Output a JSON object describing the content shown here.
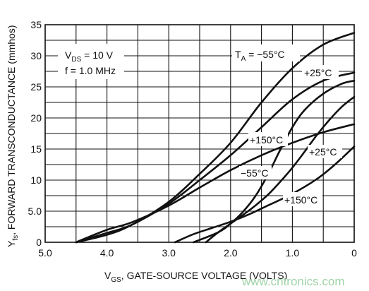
{
  "chart_data": {
    "type": "line",
    "xlabel_parts": [
      "V",
      "GS",
      ", GATE-SOURCE VOLTAGE (VOLTS)"
    ],
    "ylabel_parts": [
      "Y",
      "fs",
      ", FORWARD TRANSCONDUCTANCE (mmhos)"
    ],
    "xlim": [
      5.0,
      0
    ],
    "ylim": [
      0,
      35
    ],
    "x_ticks": [
      "5.0",
      "4.0",
      "3.0",
      "2.0",
      "1.0",
      "0"
    ],
    "y_ticks": [
      "0",
      "5.0",
      "10",
      "15",
      "20",
      "25",
      "30",
      "35"
    ],
    "grid": true,
    "conditions": {
      "vds_parts": [
        "V",
        "DS",
        " = 10 V"
      ],
      "freq": "f = 1.0 MHz"
    },
    "curve_labels": [
      {
        "label": "T",
        "sub": "A",
        "rest": " = −55°C"
      },
      {
        "label": "+25°C"
      },
      {
        "label": "+150°C"
      },
      {
        "label": "−55°C"
      },
      {
        "label": "+25°C"
      },
      {
        "label": "+150°C"
      }
    ],
    "series": [
      {
        "group": "a",
        "temperature": "−55°C",
        "x": [
          4.5,
          4.0,
          3.6,
          3.0,
          2.5,
          2.0,
          1.5,
          1.0,
          0.5,
          0
        ],
        "y": [
          0,
          1.2,
          2.8,
          6.5,
          11.0,
          16.0,
          22.5,
          28.0,
          31.8,
          33.7
        ]
      },
      {
        "group": "a",
        "temperature": "+25°C",
        "x": [
          4.5,
          4.0,
          3.6,
          3.0,
          2.5,
          2.0,
          1.5,
          1.0,
          0.5,
          0
        ],
        "y": [
          0,
          1.5,
          2.8,
          6.2,
          10.0,
          14.0,
          18.5,
          23.0,
          26.0,
          27.3
        ]
      },
      {
        "group": "a",
        "temperature": "+150°C",
        "x": [
          4.5,
          4.0,
          3.6,
          3.0,
          2.5,
          2.0,
          1.5,
          1.0,
          0.5,
          0
        ],
        "y": [
          0,
          2.0,
          3.2,
          5.9,
          8.8,
          11.6,
          14.0,
          16.0,
          17.7,
          19.0
        ]
      },
      {
        "group": "b",
        "temperature": "−55°C",
        "x": [
          2.6,
          2.2,
          2.0,
          1.8,
          1.6,
          1.4,
          1.2,
          1.0,
          0.8,
          0.5,
          0.2,
          0
        ],
        "y": [
          0,
          1.6,
          3.0,
          4.9,
          7.4,
          10.8,
          14.8,
          18.5,
          21.3,
          23.9,
          25.5,
          26.0
        ]
      },
      {
        "group": "b",
        "temperature": "+25°C",
        "x": [
          2.4,
          2.2,
          2.0,
          1.8,
          1.6,
          1.4,
          1.2,
          1.0,
          0.8,
          0.6,
          0.4,
          0.2,
          0
        ],
        "y": [
          0,
          1.6,
          3.0,
          4.4,
          5.9,
          7.6,
          9.7,
          12.0,
          14.6,
          17.3,
          19.7,
          21.8,
          23.4
        ]
      },
      {
        "group": "b",
        "temperature": "+150°C",
        "x": [
          2.9,
          2.6,
          2.3,
          2.0,
          1.7,
          1.4,
          1.0,
          0.6,
          0.3,
          0
        ],
        "y": [
          0,
          1.3,
          2.3,
          3.3,
          4.5,
          5.9,
          7.8,
          10.2,
          12.6,
          15.4
        ]
      }
    ]
  },
  "watermark": "www.cntronics.com"
}
